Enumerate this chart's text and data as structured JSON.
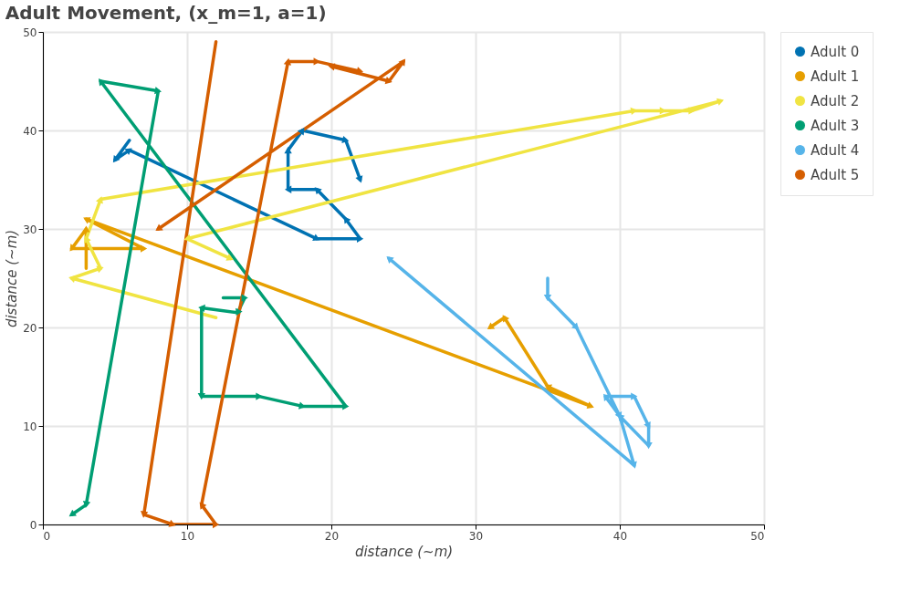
{
  "chart_data": {
    "type": "line",
    "title": "Adult Movement, (x_m=1, a=1)",
    "xlabel": "distance (~m)",
    "ylabel": "distance (~m)",
    "xlim": [
      0,
      50
    ],
    "ylim": [
      0,
      50
    ],
    "xticks": [
      0,
      10,
      20,
      30,
      40,
      50
    ],
    "yticks": [
      0,
      10,
      20,
      30,
      40,
      50
    ],
    "grid": true,
    "legend": "top right",
    "marker": "triangle",
    "line_style": "solid",
    "series": [
      {
        "name": "Adult 0",
        "color": "#0072b2",
        "x": [
          6,
          5,
          6,
          19,
          22,
          21,
          19,
          17,
          17,
          18,
          21,
          22
        ],
        "values": [
          39,
          37,
          38,
          29,
          29,
          31,
          34,
          34,
          38,
          40,
          39,
          35
        ]
      },
      {
        "name": "Adult 1",
        "color": "#e69f00",
        "x": [
          3,
          3,
          2,
          7,
          3,
          38,
          35,
          32,
          31
        ],
        "values": [
          26,
          30,
          28,
          28,
          31,
          12,
          14,
          21,
          20
        ]
      },
      {
        "name": "Adult 2",
        "color": "#f0e442",
        "x": [
          12,
          2,
          4,
          3,
          4,
          41,
          43,
          45,
          47,
          10,
          13
        ],
        "values": [
          21,
          25,
          26,
          29,
          33,
          42,
          42,
          42,
          43,
          29,
          27
        ]
      },
      {
        "name": "Adult 3",
        "color": "#009e73",
        "x": [
          12.5,
          14,
          13.5,
          11,
          11,
          15,
          18,
          21,
          4,
          8,
          3,
          2
        ],
        "values": [
          23,
          23,
          21.5,
          22,
          13,
          13,
          12,
          12,
          45,
          44,
          2,
          1
        ]
      },
      {
        "name": "Adult 4",
        "color": "#56b4e9",
        "x": [
          35,
          35,
          37,
          40,
          39,
          41,
          42,
          42,
          40,
          41,
          24
        ],
        "values": [
          25,
          23,
          20,
          11,
          13,
          13,
          10,
          8,
          11,
          6,
          27
        ]
      },
      {
        "name": "Adult 5",
        "color": "#d55e00",
        "x": [
          12,
          7,
          9,
          12,
          11,
          17,
          19,
          22,
          20,
          24,
          25,
          8
        ],
        "values": [
          49,
          1,
          0,
          0,
          2,
          47,
          47,
          46,
          46.5,
          45,
          47,
          30
        ]
      }
    ]
  }
}
